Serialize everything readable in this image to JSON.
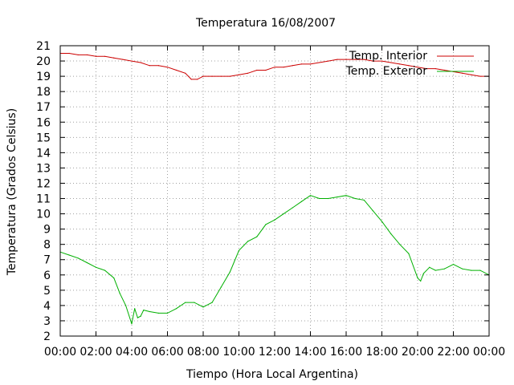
{
  "chart_data": {
    "type": "line",
    "title": "Temperatura 16/08/2007",
    "xlabel": "Tiempo (Hora Local Argentina)",
    "ylabel": "Temperatura (Grados Celsius)",
    "xlim": [
      0,
      24
    ],
    "ylim": [
      2,
      21
    ],
    "x_ticks": [
      "00:00",
      "02:00",
      "04:00",
      "06:00",
      "08:00",
      "10:00",
      "12:00",
      "14:00",
      "16:00",
      "18:00",
      "20:00",
      "22:00",
      "00:00"
    ],
    "y_ticks": [
      2,
      3,
      4,
      5,
      6,
      7,
      8,
      9,
      10,
      11,
      12,
      13,
      14,
      15,
      16,
      17,
      18,
      19,
      20,
      21
    ],
    "grid": true,
    "legend_position": "top-right",
    "series": [
      {
        "name": "Temp. Interior",
        "color": "#cc0000",
        "x": [
          "00:00",
          "00:30",
          "01:00",
          "01:30",
          "02:00",
          "02:30",
          "03:00",
          "03:30",
          "04:00",
          "04:30",
          "05:00",
          "05:30",
          "06:00",
          "06:30",
          "07:00",
          "07:20",
          "07:40",
          "08:00",
          "08:30",
          "09:00",
          "09:30",
          "10:00",
          "10:30",
          "11:00",
          "11:30",
          "12:00",
          "12:30",
          "13:00",
          "13:30",
          "14:00",
          "14:30",
          "15:00",
          "15:30",
          "16:00",
          "16:30",
          "17:00",
          "17:30",
          "18:00",
          "18:30",
          "19:00",
          "19:30",
          "20:00",
          "20:30",
          "21:00",
          "21:30",
          "22:00",
          "22:30",
          "23:00",
          "23:30",
          "24:00"
        ],
        "values": [
          20.5,
          20.5,
          20.4,
          20.4,
          20.3,
          20.3,
          20.2,
          20.1,
          20.0,
          19.9,
          19.7,
          19.7,
          19.6,
          19.4,
          19.2,
          18.8,
          18.8,
          19.0,
          19.0,
          19.0,
          19.0,
          19.1,
          19.2,
          19.4,
          19.4,
          19.6,
          19.6,
          19.7,
          19.8,
          19.8,
          19.9,
          20.0,
          20.1,
          20.1,
          20.1,
          20.1,
          20.0,
          20.0,
          19.9,
          19.8,
          19.7,
          19.6,
          19.5,
          19.5,
          19.4,
          19.3,
          19.2,
          19.1,
          19.0,
          19.0
        ]
      },
      {
        "name": "Temp. Exterior",
        "color": "#00b000",
        "x": [
          "00:00",
          "00:30",
          "01:00",
          "01:30",
          "02:00",
          "02:30",
          "03:00",
          "03:20",
          "03:40",
          "04:00",
          "04:10",
          "04:20",
          "04:30",
          "04:40",
          "05:00",
          "05:30",
          "06:00",
          "06:30",
          "07:00",
          "07:30",
          "08:00",
          "08:30",
          "09:00",
          "09:30",
          "10:00",
          "10:30",
          "11:00",
          "11:30",
          "12:00",
          "12:30",
          "13:00",
          "13:30",
          "14:00",
          "14:30",
          "15:00",
          "15:30",
          "16:00",
          "16:30",
          "17:00",
          "17:30",
          "18:00",
          "18:30",
          "19:00",
          "19:30",
          "20:00",
          "20:10",
          "20:20",
          "20:40",
          "21:00",
          "21:30",
          "22:00",
          "22:30",
          "23:00",
          "23:30",
          "24:00"
        ],
        "values": [
          7.5,
          7.3,
          7.1,
          6.8,
          6.5,
          6.3,
          5.8,
          4.8,
          4.0,
          2.8,
          3.8,
          3.2,
          3.3,
          3.7,
          3.6,
          3.5,
          3.5,
          3.8,
          4.2,
          4.2,
          3.9,
          4.2,
          5.2,
          6.2,
          7.6,
          8.2,
          8.5,
          9.3,
          9.6,
          10.0,
          10.4,
          10.8,
          11.2,
          11.0,
          11.0,
          11.1,
          11.2,
          11.0,
          10.9,
          10.2,
          9.5,
          8.7,
          8.0,
          7.4,
          5.8,
          5.6,
          6.1,
          6.5,
          6.3,
          6.4,
          6.7,
          6.4,
          6.3,
          6.3,
          6.0
        ]
      }
    ]
  }
}
